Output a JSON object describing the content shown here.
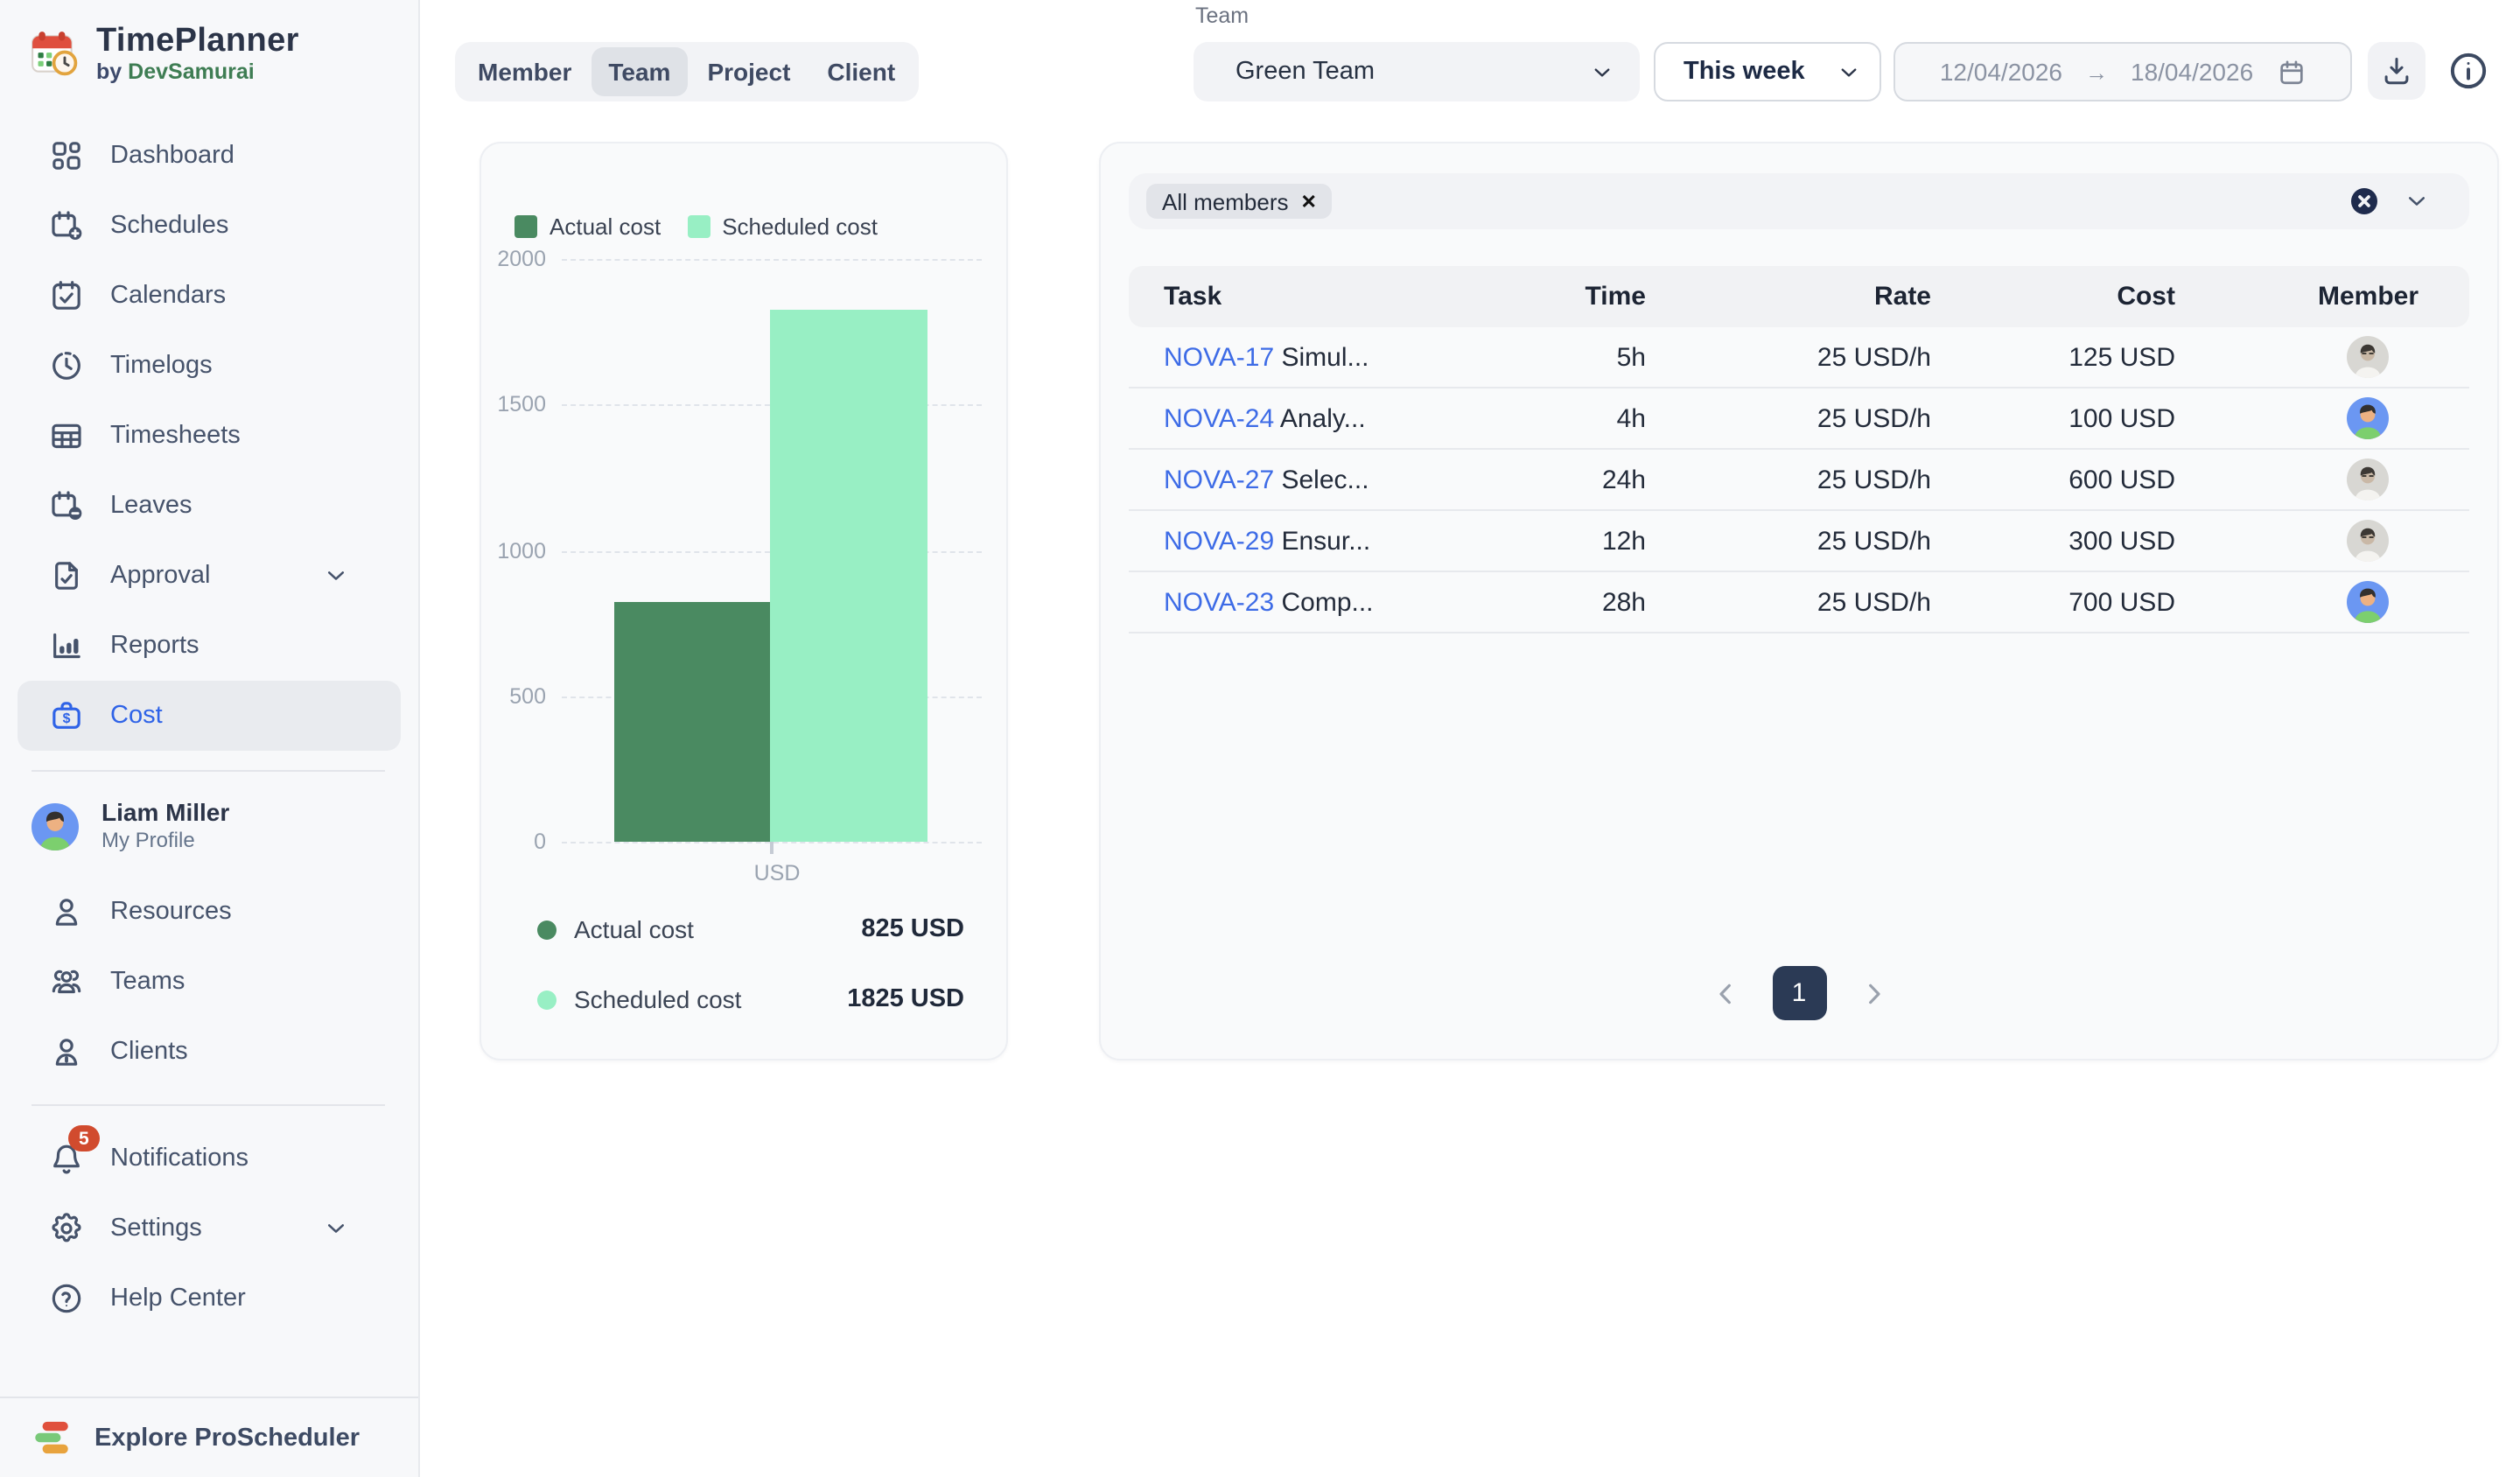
{
  "brand": {
    "title": "TimePlanner",
    "by_prefix": "by",
    "by_name": "DevSamurai"
  },
  "sidebar": {
    "primary": [
      {
        "label": "Dashboard",
        "icon": "dashboard-icon"
      },
      {
        "label": "Schedules",
        "icon": "calendar-plus-icon"
      },
      {
        "label": "Calendars",
        "icon": "calendar-check-icon"
      },
      {
        "label": "Timelogs",
        "icon": "clock-icon"
      },
      {
        "label": "Timesheets",
        "icon": "table-icon"
      },
      {
        "label": "Leaves",
        "icon": "calendar-minus-icon"
      },
      {
        "label": "Approval",
        "icon": "document-check-icon",
        "chevron": true
      },
      {
        "label": "Reports",
        "icon": "bar-chart-icon"
      },
      {
        "label": "Cost",
        "icon": "briefcase-dollar-icon",
        "active": true
      }
    ],
    "profile": {
      "name": "Liam Miller",
      "subtitle": "My Profile",
      "avatar": "cartoon"
    },
    "secondary": [
      {
        "label": "Resources",
        "icon": "person-icon"
      },
      {
        "label": "Teams",
        "icon": "people-icon"
      },
      {
        "label": "Clients",
        "icon": "client-icon"
      }
    ],
    "tertiary": [
      {
        "label": "Notifications",
        "icon": "bell-icon",
        "badge": "5"
      },
      {
        "label": "Settings",
        "icon": "gear-icon",
        "chevron": true
      },
      {
        "label": "Help Center",
        "icon": "help-icon"
      }
    ],
    "footer": {
      "label": "Explore ProScheduler"
    }
  },
  "header": {
    "tabs": [
      {
        "label": "Member"
      },
      {
        "label": "Team",
        "selected": true
      },
      {
        "label": "Project"
      },
      {
        "label": "Client"
      }
    ],
    "team_label": "Team",
    "team_value": "Green Team",
    "period_value": "This week",
    "date_from": "12/04/2026",
    "arrow": "→",
    "date_to": "18/04/2026"
  },
  "chart_data": {
    "type": "bar",
    "title": "",
    "categories": [
      "USD"
    ],
    "series": [
      {
        "name": "Actual cost",
        "values": [
          825
        ],
        "color": "#4a8a61"
      },
      {
        "name": "Scheduled cost",
        "values": [
          1825
        ],
        "color": "#98efc4"
      }
    ],
    "xlabel": "USD",
    "ylabel": "",
    "ylim": [
      0,
      2000
    ],
    "yticks": [
      0,
      500,
      1000,
      1500,
      2000
    ],
    "grid": "dashed-horizontal",
    "legend_position": "top"
  },
  "chart_card": {
    "summary": [
      {
        "label": "Actual cost",
        "value": "825 USD",
        "color": "#4a8a61"
      },
      {
        "label": "Scheduled cost",
        "value": "1825 USD",
        "color": "#98efc4"
      }
    ]
  },
  "table_card": {
    "filter_chip": "All members",
    "chip_close": "✕",
    "columns": [
      "Task",
      "Time",
      "Rate",
      "Cost",
      "Member"
    ],
    "rows": [
      {
        "code": "NOVA-17",
        "title": "Simul...",
        "time": "5h",
        "rate": "25 USD/h",
        "cost": "125 USD",
        "avatar": "photo"
      },
      {
        "code": "NOVA-24",
        "title": "Analy...",
        "time": "4h",
        "rate": "25 USD/h",
        "cost": "100 USD",
        "avatar": "cartoon"
      },
      {
        "code": "NOVA-27",
        "title": "Selec...",
        "time": "24h",
        "rate": "25 USD/h",
        "cost": "600 USD",
        "avatar": "photo"
      },
      {
        "code": "NOVA-29",
        "title": "Ensur...",
        "time": "12h",
        "rate": "25 USD/h",
        "cost": "300 USD",
        "avatar": "photo"
      },
      {
        "code": "NOVA-23",
        "title": "Comp...",
        "time": "28h",
        "rate": "25 USD/h",
        "cost": "700 USD",
        "avatar": "cartoon"
      }
    ],
    "pagination": {
      "page": "1"
    }
  },
  "colors": {
    "accent_blue": "#2f63e7",
    "link_blue": "#3d6be6",
    "actual_green": "#4a8a61",
    "scheduled_green": "#98efc4",
    "badge_red": "#d14b2e",
    "pagination_navy": "#2b3a55"
  }
}
